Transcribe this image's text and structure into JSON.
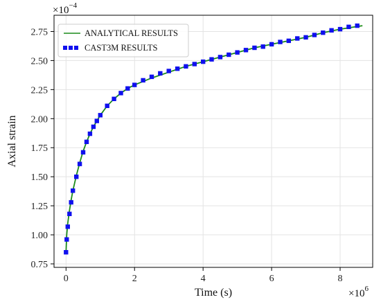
{
  "chart_data": {
    "type": "line",
    "title": "",
    "xlabel": "Time (s)",
    "ylabel": "Axial strain",
    "x_multiplier": "×10",
    "x_multiplier_exp": "6",
    "y_multiplier": "×10",
    "y_multiplier_exp": "−4",
    "xlim": [
      -0.35,
      8.95
    ],
    "ylim": [
      0.72,
      2.89
    ],
    "x_ticks": [
      0,
      2,
      4,
      6,
      8
    ],
    "x_tick_labels": [
      "0",
      "2",
      "4",
      "6",
      "8"
    ],
    "y_ticks": [
      0.75,
      1.0,
      1.25,
      1.5,
      1.75,
      2.0,
      2.25,
      2.5,
      2.75
    ],
    "y_tick_labels": [
      "0.75",
      "1.00",
      "1.25",
      "1.50",
      "1.75",
      "2.00",
      "2.25",
      "2.50",
      "2.75"
    ],
    "grid": true,
    "legend_position": "top-left",
    "series": [
      {
        "name": "ANALYTICAL RESULTS",
        "style": "line",
        "color": "#1a8a1a",
        "x": [
          0,
          0.02,
          0.05,
          0.1,
          0.15,
          0.2,
          0.3,
          0.4,
          0.5,
          0.6,
          0.7,
          0.8,
          0.9,
          1.0,
          1.2,
          1.4,
          1.6,
          1.8,
          2.0,
          2.5,
          3.0,
          3.5,
          4.0,
          4.5,
          5.0,
          5.5,
          6.0,
          6.5,
          7.0,
          7.5,
          8.0,
          8.65
        ],
        "y": [
          0.85,
          1.0,
          1.1,
          1.21,
          1.3,
          1.38,
          1.51,
          1.62,
          1.72,
          1.8,
          1.87,
          1.93,
          1.98,
          2.03,
          2.11,
          2.17,
          2.22,
          2.26,
          2.29,
          2.35,
          2.4,
          2.45,
          2.49,
          2.53,
          2.57,
          2.61,
          2.64,
          2.67,
          2.7,
          2.74,
          2.77,
          2.8
        ]
      },
      {
        "name": "CAST3M RESULTS",
        "style": "square-markers",
        "color": "#1010ee",
        "x": [
          0,
          0.02,
          0.05,
          0.1,
          0.15,
          0.2,
          0.3,
          0.4,
          0.5,
          0.6,
          0.7,
          0.8,
          0.9,
          1.0,
          1.2,
          1.4,
          1.6,
          1.8,
          2.0,
          2.25,
          2.5,
          2.75,
          3.0,
          3.25,
          3.5,
          3.75,
          4.0,
          4.25,
          4.5,
          4.75,
          5.0,
          5.25,
          5.5,
          5.75,
          6.0,
          6.25,
          6.5,
          6.75,
          7.0,
          7.25,
          7.5,
          7.75,
          8.0,
          8.25,
          8.5
        ],
        "y": [
          0.85,
          0.96,
          1.07,
          1.18,
          1.28,
          1.38,
          1.5,
          1.61,
          1.71,
          1.8,
          1.87,
          1.93,
          1.98,
          2.03,
          2.11,
          2.17,
          2.22,
          2.26,
          2.29,
          2.33,
          2.36,
          2.39,
          2.41,
          2.43,
          2.45,
          2.47,
          2.49,
          2.51,
          2.53,
          2.55,
          2.57,
          2.59,
          2.61,
          2.62,
          2.64,
          2.66,
          2.67,
          2.69,
          2.7,
          2.72,
          2.74,
          2.76,
          2.77,
          2.79,
          2.8
        ]
      }
    ]
  }
}
